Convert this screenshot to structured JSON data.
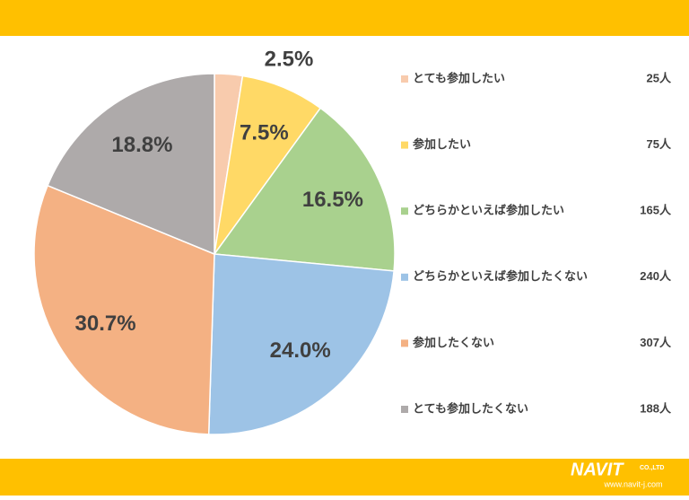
{
  "chart_data": {
    "type": "pie",
    "categories": [
      "とても参加したい",
      "参加したい",
      "どちらかといえば参加したい",
      "どちらかといえば参加したくない",
      "参加したくない",
      "とても参加したくない"
    ],
    "values": [
      2.5,
      7.5,
      16.5,
      24.0,
      30.7,
      18.8
    ],
    "value_labels": [
      "2.5%",
      "7.5%",
      "16.5%",
      "24.0%",
      "30.7%",
      "18.8%"
    ],
    "count_labels": [
      "25人",
      "75人",
      "165人",
      "240人",
      "307人",
      "188人"
    ],
    "colors": [
      "#F8CBAD",
      "#FFD966",
      "#A9D18E",
      "#9DC3E6",
      "#F4B183",
      "#AEAAAA"
    ]
  },
  "footer": {
    "logo": "NAVIT",
    "company": "CO.,LTD",
    "url": "www.navit-j.com"
  }
}
